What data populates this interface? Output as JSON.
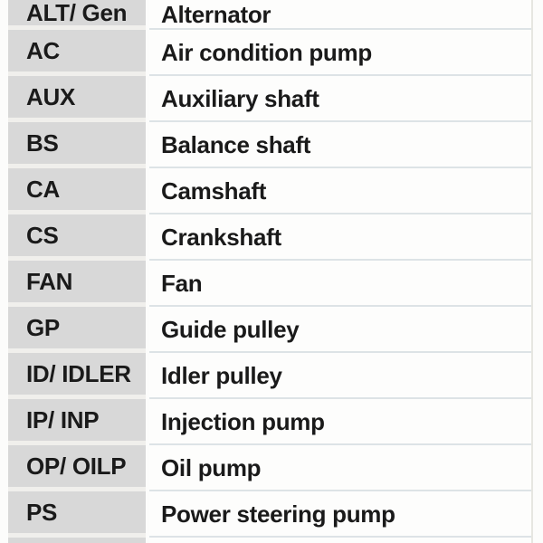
{
  "table": {
    "rows": [
      {
        "abbr": "ALT/ Gen",
        "desc": "Alternator"
      },
      {
        "abbr": "AC",
        "desc": "Air condition pump"
      },
      {
        "abbr": "AUX",
        "desc": "Auxiliary shaft"
      },
      {
        "abbr": "BS",
        "desc": "Balance shaft"
      },
      {
        "abbr": "CA",
        "desc": "Camshaft"
      },
      {
        "abbr": "CS",
        "desc": "Crankshaft"
      },
      {
        "abbr": "FAN",
        "desc": "Fan"
      },
      {
        "abbr": "GP",
        "desc": "Guide pulley"
      },
      {
        "abbr": "ID/ IDLER",
        "desc": "Idler pulley"
      },
      {
        "abbr": "IP/ INP",
        "desc": "Injection pump"
      },
      {
        "abbr": "OP/ OILP",
        "desc": "Oil pump"
      },
      {
        "abbr": "PS",
        "desc": "Power steering pump"
      }
    ]
  },
  "colors": {
    "page_bg": "#fcfcfb",
    "abbr_cell_bg": "#d8d8d8",
    "desc_cell_bg": "#fdfdfc",
    "row_gap": "#f0efec",
    "desc_separator": "#dde3e6",
    "right_border": "#e6e6e1",
    "text": "#1a1a1a"
  }
}
